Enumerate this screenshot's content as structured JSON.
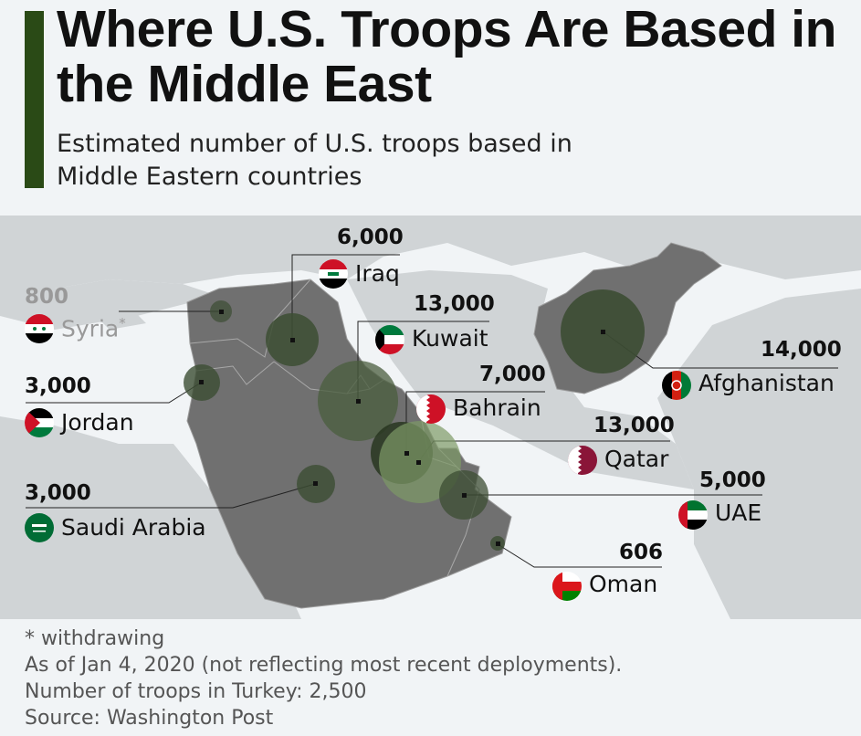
{
  "header": {
    "title": "Where U.S. Troops Are Based in the Middle East",
    "subtitle": "Estimated number of U.S. troops based in Middle Eastern countries"
  },
  "colors": {
    "accent": "#2a4a16",
    "bubble": "#3c4d33",
    "bubble_light": "#7d9a66",
    "land_highlight": "#6e6e6e",
    "land_other": "#c9cdcf",
    "water": "#f1f4f6"
  },
  "countries": [
    {
      "name": "Syria",
      "suffix": "*",
      "value": "800",
      "flag": "syria-flag-icon",
      "withdrawing": true
    },
    {
      "name": "Jordan",
      "value": "3,000",
      "flag": "jordan-flag-icon"
    },
    {
      "name": "Saudi Arabia",
      "value": "3,000",
      "flag": "saudi-flag-icon"
    },
    {
      "name": "Iraq",
      "value": "6,000",
      "flag": "iraq-flag-icon"
    },
    {
      "name": "Kuwait",
      "value": "13,000",
      "flag": "kuwait-flag-icon"
    },
    {
      "name": "Bahrain",
      "value": "7,000",
      "flag": "bahrain-flag-icon"
    },
    {
      "name": "Qatar",
      "value": "13,000",
      "flag": "qatar-flag-icon"
    },
    {
      "name": "UAE",
      "value": "5,000",
      "flag": "uae-flag-icon"
    },
    {
      "name": "Oman",
      "value": "606",
      "flag": "oman-flag-icon"
    },
    {
      "name": "Afghanistan",
      "value": "14,000",
      "flag": "afghanistan-flag-icon"
    }
  ],
  "footer": {
    "note1": "* withdrawing",
    "note2": "As of Jan 4, 2020 (not reflecting most recent deployments).",
    "note3": "Number of troops in Turkey: 2,500",
    "source": "Source: Washington Post"
  }
}
